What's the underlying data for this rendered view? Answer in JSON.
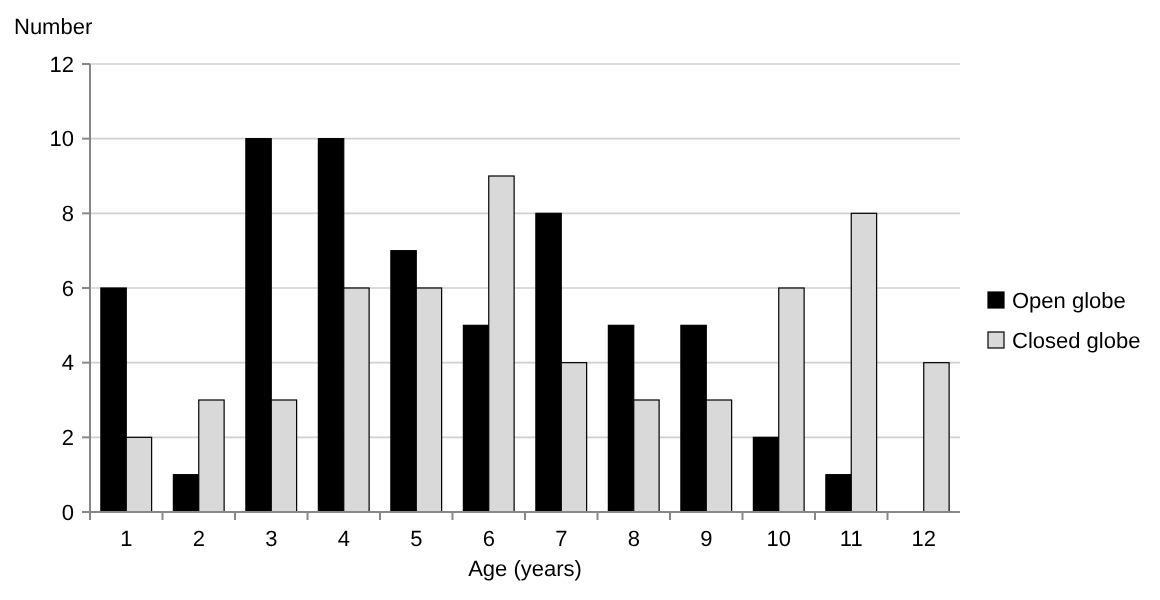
{
  "chart_data": {
    "type": "bar",
    "ylabel": "Number",
    "xlabel": "Age (years)",
    "categories": [
      "1",
      "2",
      "3",
      "4",
      "5",
      "6",
      "7",
      "8",
      "9",
      "10",
      "11",
      "12"
    ],
    "series": [
      {
        "name": "Open globe",
        "color": "#000000",
        "values": [
          6,
          1,
          10,
          10,
          7,
          5,
          8,
          5,
          5,
          2,
          1,
          0
        ]
      },
      {
        "name": "Closed globe",
        "color": "#d9d9d9",
        "values": [
          2,
          3,
          3,
          6,
          6,
          9,
          4,
          3,
          3,
          6,
          8,
          4
        ]
      }
    ],
    "ylim": [
      0,
      12
    ],
    "yticks": [
      0,
      2,
      4,
      6,
      8,
      10,
      12
    ],
    "grid": "y",
    "legend": "right"
  }
}
